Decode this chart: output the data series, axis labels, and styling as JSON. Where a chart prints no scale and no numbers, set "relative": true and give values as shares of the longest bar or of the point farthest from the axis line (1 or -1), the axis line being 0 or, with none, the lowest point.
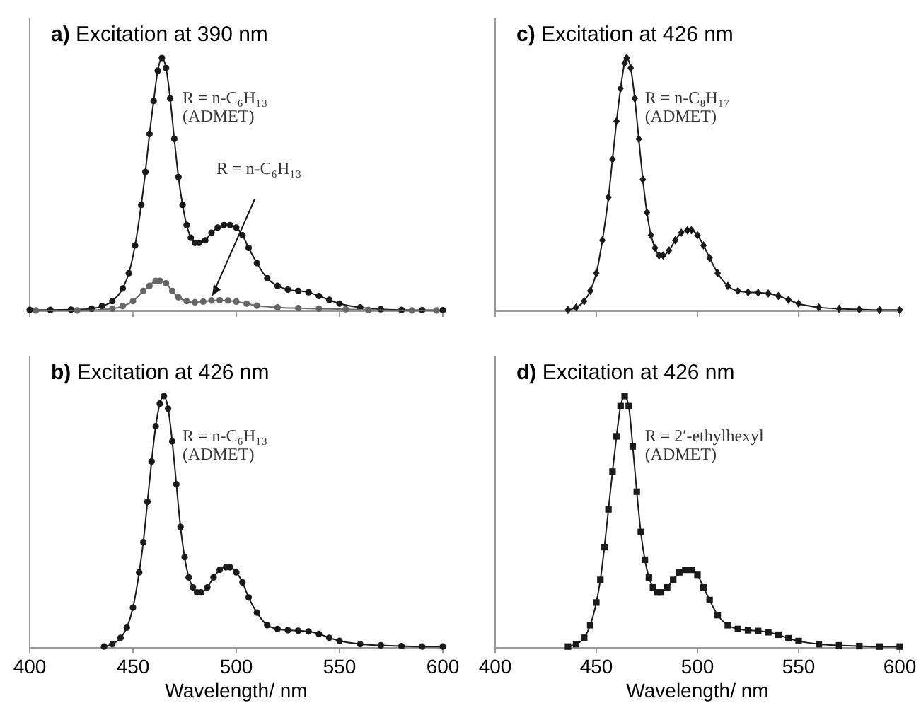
{
  "chart_data": [
    {
      "type": "line",
      "title": "a) Excitation at 390 nm",
      "relative": true,
      "xlim": [
        400,
        600
      ],
      "xticks": [
        400,
        450,
        500,
        550,
        600
      ],
      "tick_labels": false,
      "marker": "circle",
      "annotations": [
        "R = n-C₆H₁₃\n(ADMET)",
        {
          "text": "R = n-C₆H₁₃",
          "x": 487,
          "y": 0.04
        }
      ],
      "series": [
        {
          "color": "#1a1a1a",
          "x": [
            400,
            410,
            420,
            430,
            435,
            440,
            445,
            448,
            451,
            454,
            456,
            458,
            460,
            462,
            464,
            466,
            468,
            470,
            472,
            474,
            476,
            478,
            480,
            482,
            485,
            488,
            491,
            494,
            497,
            500,
            503,
            506,
            510,
            515,
            520,
            525,
            530,
            535,
            540,
            545,
            550,
            560,
            570,
            580,
            590,
            600
          ],
          "values": [
            0.005,
            0.005,
            0.006,
            0.01,
            0.02,
            0.04,
            0.09,
            0.15,
            0.26,
            0.42,
            0.55,
            0.7,
            0.83,
            0.95,
            1.0,
            0.96,
            0.84,
            0.68,
            0.53,
            0.42,
            0.34,
            0.29,
            0.27,
            0.27,
            0.28,
            0.31,
            0.33,
            0.34,
            0.34,
            0.33,
            0.3,
            0.25,
            0.19,
            0.13,
            0.1,
            0.085,
            0.08,
            0.075,
            0.06,
            0.045,
            0.03,
            0.015,
            0.008,
            0.005,
            0.004,
            0.004
          ]
        },
        {
          "color": "#666666",
          "x": [
            403,
            423,
            440,
            445,
            450,
            455,
            458,
            461,
            463,
            466,
            469,
            472,
            476,
            480,
            484,
            488,
            492,
            496,
            500,
            505,
            510,
            520,
            530,
            540,
            553,
            564,
            585,
            597
          ],
          "values": [
            0.003,
            0.003,
            0.01,
            0.02,
            0.04,
            0.08,
            0.1,
            0.12,
            0.12,
            0.11,
            0.08,
            0.055,
            0.04,
            0.035,
            0.038,
            0.042,
            0.043,
            0.042,
            0.038,
            0.03,
            0.022,
            0.015,
            0.012,
            0.01,
            0.008,
            0.005,
            0.003,
            0.003
          ]
        }
      ]
    },
    {
      "type": "line",
      "title": "c) Excitation at 426 nm",
      "relative": true,
      "xlim": [
        400,
        600
      ],
      "xticks": [
        400,
        450,
        500,
        550,
        600
      ],
      "tick_labels": false,
      "marker": "diamond",
      "annotations": [
        "R = n-C₈H₁₇\n(ADMET)"
      ],
      "series": [
        {
          "color": "#1a1a1a",
          "x": [
            436,
            440,
            444,
            447,
            450,
            453,
            456,
            458,
            460,
            462,
            464,
            465,
            467,
            469,
            471,
            473,
            475,
            477,
            479,
            481,
            483,
            486,
            489,
            492,
            495,
            497,
            500,
            503,
            506,
            510,
            515,
            520,
            525,
            530,
            535,
            540,
            545,
            550,
            560,
            570,
            580,
            590,
            600
          ],
          "values": [
            0.005,
            0.015,
            0.04,
            0.08,
            0.15,
            0.28,
            0.45,
            0.6,
            0.75,
            0.88,
            0.98,
            1.0,
            0.96,
            0.84,
            0.68,
            0.52,
            0.39,
            0.3,
            0.25,
            0.22,
            0.22,
            0.24,
            0.28,
            0.31,
            0.32,
            0.32,
            0.3,
            0.26,
            0.21,
            0.15,
            0.1,
            0.08,
            0.075,
            0.073,
            0.07,
            0.06,
            0.045,
            0.03,
            0.015,
            0.01,
            0.007,
            0.005,
            0.005
          ]
        }
      ]
    },
    {
      "type": "line",
      "title": "b) Excitation at 426 nm",
      "xlabel": "Wavelength/ nm",
      "relative": true,
      "xlim": [
        400,
        600
      ],
      "xticks": [
        400,
        450,
        500,
        550,
        600
      ],
      "tick_labels": "x",
      "marker": "circle",
      "annotations": [
        "R = n-C₆H₁₃\n(ADMET)"
      ],
      "series": [
        {
          "color": "#1a1a1a",
          "x": [
            436,
            440,
            444,
            447,
            450,
            453,
            455,
            457,
            459,
            461,
            463,
            465,
            467,
            469,
            471,
            473,
            475,
            477,
            479,
            481,
            483,
            486,
            489,
            492,
            495,
            497,
            500,
            503,
            506,
            510,
            515,
            520,
            525,
            530,
            535,
            540,
            545,
            550,
            560,
            570,
            580,
            590,
            600
          ],
          "values": [
            0.005,
            0.015,
            0.04,
            0.08,
            0.16,
            0.3,
            0.42,
            0.58,
            0.74,
            0.88,
            0.97,
            1.0,
            0.95,
            0.82,
            0.65,
            0.48,
            0.36,
            0.28,
            0.24,
            0.22,
            0.22,
            0.24,
            0.28,
            0.31,
            0.32,
            0.32,
            0.3,
            0.26,
            0.2,
            0.14,
            0.09,
            0.075,
            0.07,
            0.068,
            0.065,
            0.055,
            0.04,
            0.028,
            0.015,
            0.01,
            0.007,
            0.005,
            0.005
          ]
        }
      ]
    },
    {
      "type": "line",
      "title": "d) Excitation at 426 nm",
      "xlabel": "Wavelength/ nm",
      "relative": true,
      "xlim": [
        400,
        600
      ],
      "xticks": [
        400,
        450,
        500,
        550,
        600
      ],
      "tick_labels": "x",
      "marker": "square",
      "annotations": [
        "R = 2′-ethylhexyl\n(ADMET)"
      ],
      "series": [
        {
          "color": "#1a1a1a",
          "x": [
            436,
            440,
            444,
            447,
            450,
            452,
            454,
            456,
            458,
            460,
            462,
            464,
            466,
            468,
            470,
            472,
            474,
            476,
            478,
            480,
            482,
            485,
            488,
            491,
            494,
            497,
            500,
            503,
            506,
            510,
            515,
            520,
            525,
            530,
            535,
            540,
            545,
            550,
            560,
            570,
            580,
            590,
            600
          ],
          "values": [
            0.005,
            0.015,
            0.04,
            0.09,
            0.18,
            0.27,
            0.4,
            0.55,
            0.7,
            0.84,
            0.96,
            1.0,
            0.96,
            0.8,
            0.62,
            0.46,
            0.35,
            0.28,
            0.24,
            0.22,
            0.22,
            0.24,
            0.27,
            0.3,
            0.31,
            0.31,
            0.29,
            0.24,
            0.19,
            0.13,
            0.09,
            0.075,
            0.07,
            0.067,
            0.062,
            0.052,
            0.038,
            0.027,
            0.015,
            0.01,
            0.007,
            0.005,
            0.005
          ]
        }
      ]
    }
  ]
}
